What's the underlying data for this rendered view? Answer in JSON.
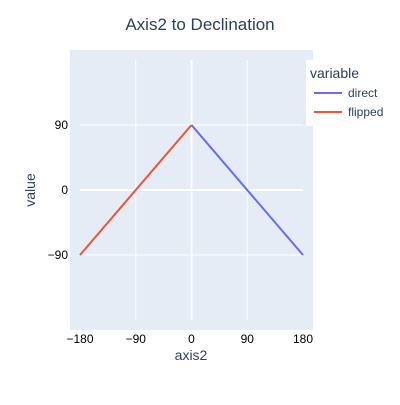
{
  "chart_data": {
    "type": "line",
    "title": "Axis2 to Declination",
    "xlabel": "axis2",
    "ylabel": "value",
    "xlim": [
      -180,
      180
    ],
    "ylim": [
      -180,
      180
    ],
    "x_ticks": [
      -180,
      -90,
      0,
      90,
      180
    ],
    "x_tick_labels": [
      "−180",
      "−90",
      "0",
      "90",
      "180"
    ],
    "y_ticks": [
      -90,
      0,
      90
    ],
    "y_tick_labels": [
      "−90",
      "0",
      "90"
    ],
    "grid": true,
    "legend": {
      "title": "variable",
      "placement": "right"
    },
    "series": [
      {
        "name": "direct",
        "color": "#636efa",
        "x": [
          0,
          180
        ],
        "y": [
          90,
          -90
        ]
      },
      {
        "name": "flipped",
        "color": "#ef553b",
        "x": [
          -180,
          0
        ],
        "y": [
          -90,
          90
        ]
      }
    ],
    "colors": {
      "plot_background": "#e5ecf6",
      "grid": "#ffffff",
      "text": "#2a3f5f"
    }
  }
}
